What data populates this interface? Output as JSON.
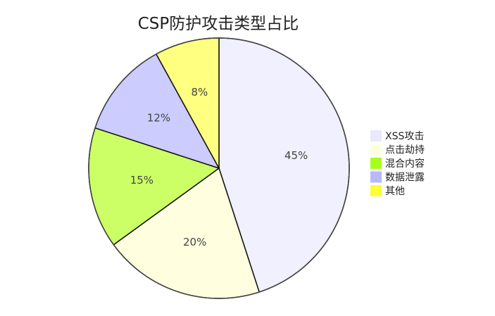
{
  "chart_data": {
    "type": "pie",
    "title": "CSP防护攻击类型占比",
    "legend_position": "right",
    "slices": [
      {
        "label": "XSS攻击",
        "value": 45,
        "display": "45%",
        "color": "#f0f0ff"
      },
      {
        "label": "点击劫持",
        "value": 20,
        "display": "20%",
        "color": "#ffffe0"
      },
      {
        "label": "混合内容",
        "value": 15,
        "display": "15%",
        "color": "#ccff66"
      },
      {
        "label": "数据泄露",
        "value": 12,
        "display": "12%",
        "color": "#ccccff"
      },
      {
        "label": "其他",
        "value": 8,
        "display": "8%",
        "color": "#ffff80"
      }
    ]
  },
  "legend": {
    "items": [
      {
        "label": "XSS攻击",
        "color": "#e8e8ff"
      },
      {
        "label": "点击劫持",
        "color": "#ffffe0"
      },
      {
        "label": "混合内容",
        "color": "#a6ff1a"
      },
      {
        "label": "数据泄露",
        "color": "#b8b8ff"
      },
      {
        "label": "其他",
        "color": "#ffff33"
      }
    ]
  }
}
